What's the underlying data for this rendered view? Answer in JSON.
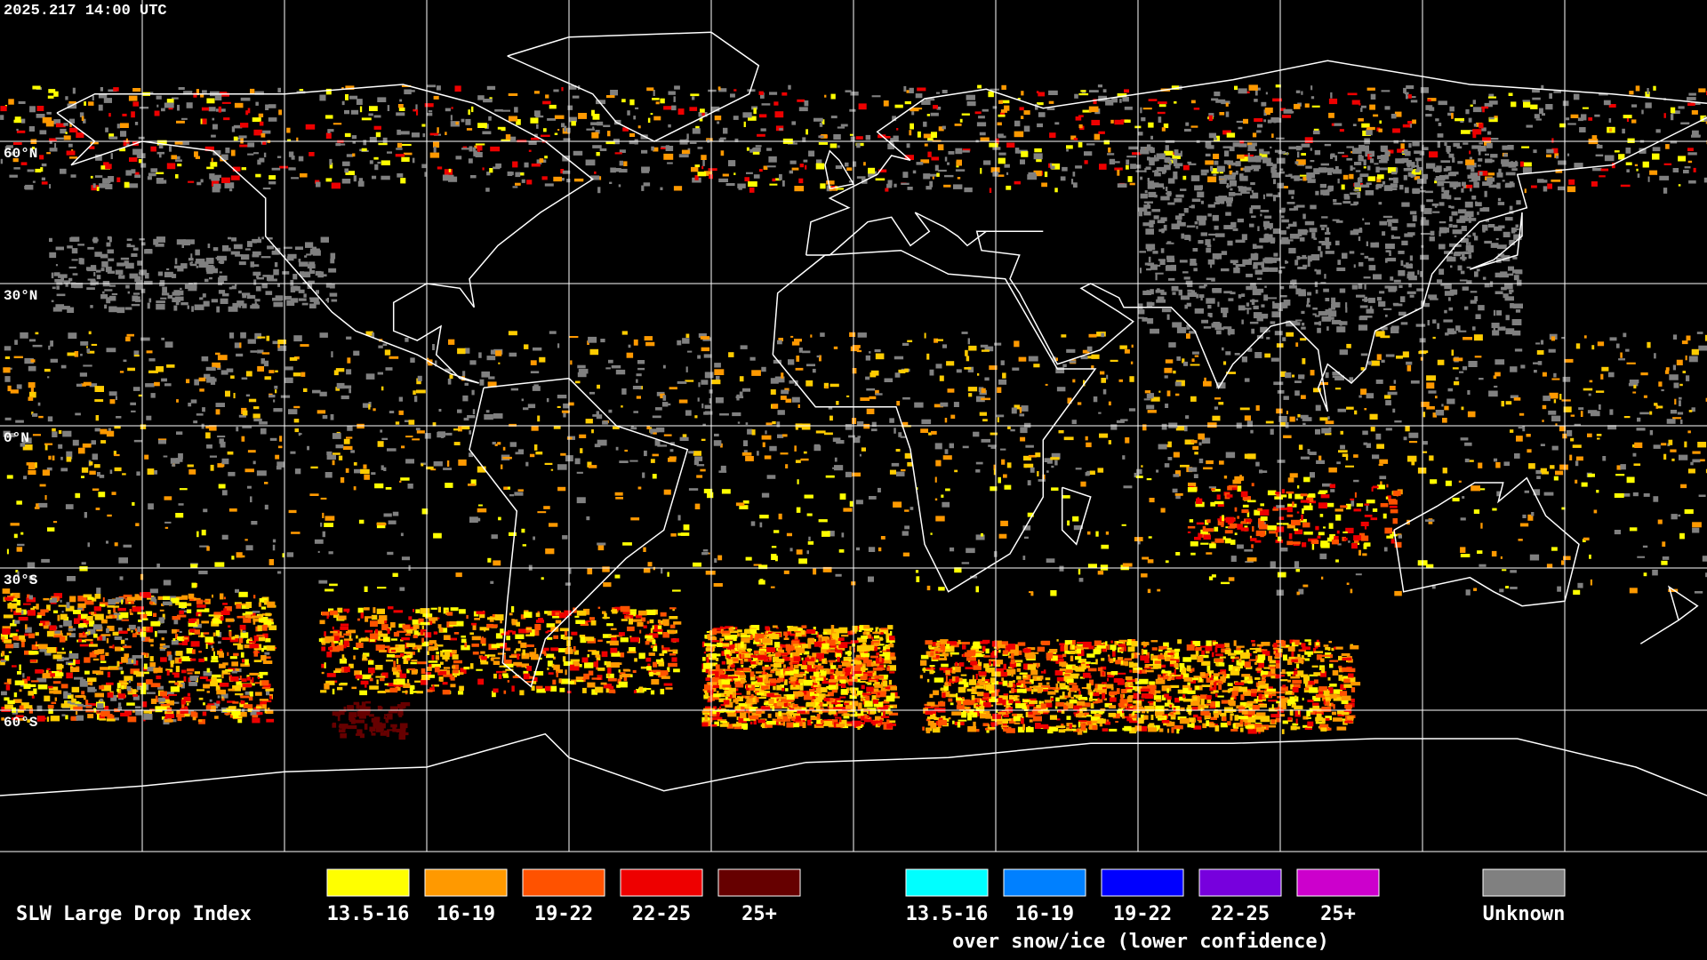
{
  "header": {
    "timestamp": "2025.217 14:00 UTC"
  },
  "map": {
    "latitude_labels": [
      "60°N",
      "30°N",
      "0°N",
      "30°S",
      "60°S"
    ]
  },
  "legend": {
    "title": "SLW Large Drop Index",
    "items": [
      {
        "label": "13.5-16",
        "color": "#ffff00"
      },
      {
        "label": "16-19",
        "color": "#ff9900"
      },
      {
        "label": "19-22",
        "color": "#ff5200"
      },
      {
        "label": "22-25",
        "color": "#ee0000"
      },
      {
        "label": "25+",
        "color": "#660000"
      }
    ],
    "snow_ice_items": [
      {
        "label": "13.5-16",
        "color": "#00ffff"
      },
      {
        "label": "16-19",
        "color": "#0080ff"
      },
      {
        "label": "19-22",
        "color": "#0000ff"
      },
      {
        "label": "22-25",
        "color": "#7700dd"
      },
      {
        "label": "25+",
        "color": "#cc00cc"
      }
    ],
    "snow_ice_caption": "over snow/ice (lower confidence)",
    "unknown": {
      "label": "Unknown",
      "color": "#808080"
    }
  }
}
